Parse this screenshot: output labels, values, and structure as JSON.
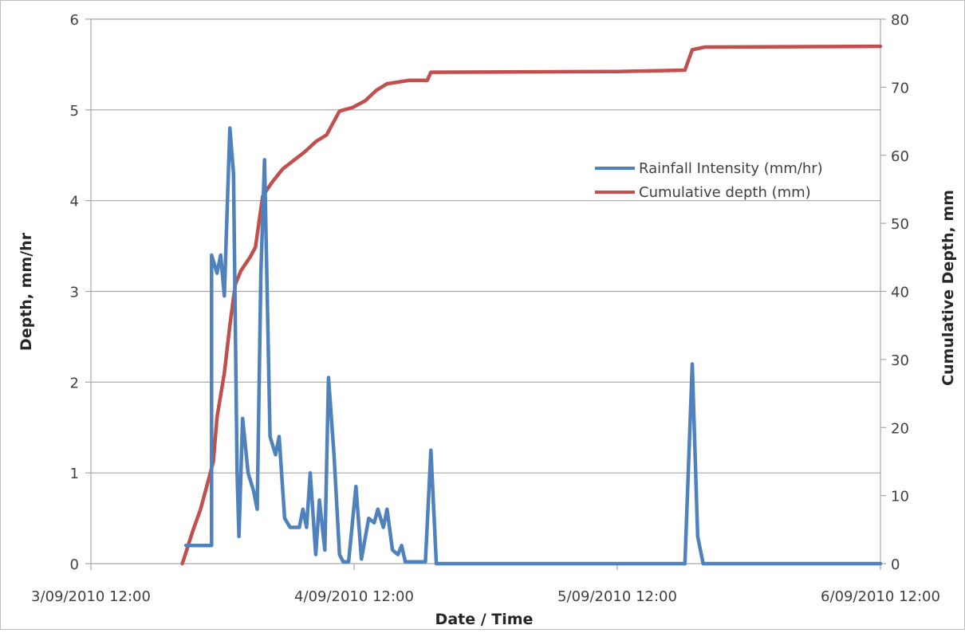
{
  "chart_data": {
    "type": "line",
    "title": "",
    "xlabel": "Date / Time",
    "ylabel": "Depth, mm/hr",
    "y2label": "Cumulative Depth, mm",
    "ylim": [
      0,
      6
    ],
    "y2lim": [
      0,
      80
    ],
    "xlim": [
      "3/09/2010 12:00",
      "6/09/2010 12:00"
    ],
    "x_ticks": [
      "3/09/2010 12:00",
      "4/09/2010 12:00",
      "5/09/2010 12:00",
      "6/09/2010 12:00"
    ],
    "y_ticks": [
      0,
      1,
      2,
      3,
      4,
      5,
      6
    ],
    "y2_ticks": [
      0,
      10,
      20,
      30,
      40,
      50,
      60,
      70,
      80
    ],
    "grid": "horizontal",
    "legend_position": "center-right",
    "series": [
      {
        "name": "Rainfall Intensity (mm/hr)",
        "axis": "left",
        "color": "#4f81bd",
        "points": [
          [
            "3/09/2010 20:40",
            0.2
          ],
          [
            "3/09/2010 21:20",
            0.2
          ],
          [
            "3/09/2010 22:00",
            0.2
          ],
          [
            "3/09/2010 22:40",
            0.2
          ],
          [
            "3/09/2010 23:00",
            0.2
          ],
          [
            "3/09/2010 23:00",
            3.4
          ],
          [
            "3/09/2010 23:30",
            3.2
          ],
          [
            "3/09/2010 23:50",
            3.4
          ],
          [
            "4/09/2010 00:10",
            2.95
          ],
          [
            "4/09/2010 00:40",
            4.8
          ],
          [
            "4/09/2010 01:00",
            4.3
          ],
          [
            "4/09/2010 01:20",
            1.0
          ],
          [
            "4/09/2010 01:30",
            0.3
          ],
          [
            "4/09/2010 01:50",
            1.6
          ],
          [
            "4/09/2010 02:20",
            1.0
          ],
          [
            "4/09/2010 02:50",
            0.8
          ],
          [
            "4/09/2010 03:10",
            0.6
          ],
          [
            "4/09/2010 03:30",
            3.2
          ],
          [
            "4/09/2010 03:50",
            4.45
          ],
          [
            "4/09/2010 04:20",
            1.4
          ],
          [
            "4/09/2010 04:50",
            1.2
          ],
          [
            "4/09/2010 05:10",
            1.4
          ],
          [
            "4/09/2010 05:40",
            0.5
          ],
          [
            "4/09/2010 06:10",
            0.4
          ],
          [
            "4/09/2010 07:00",
            0.4
          ],
          [
            "4/09/2010 07:20",
            0.6
          ],
          [
            "4/09/2010 07:40",
            0.4
          ],
          [
            "4/09/2010 08:00",
            1.0
          ],
          [
            "4/09/2010 08:30",
            0.1
          ],
          [
            "4/09/2010 08:50",
            0.7
          ],
          [
            "4/09/2010 09:20",
            0.15
          ],
          [
            "4/09/2010 09:40",
            2.05
          ],
          [
            "4/09/2010 10:10",
            1.2
          ],
          [
            "4/09/2010 10:40",
            0.1
          ],
          [
            "4/09/2010 11:00",
            0.02
          ],
          [
            "4/09/2010 11:30",
            0.02
          ],
          [
            "4/09/2010 12:10",
            0.85
          ],
          [
            "4/09/2010 12:40",
            0.05
          ],
          [
            "4/09/2010 13:20",
            0.5
          ],
          [
            "4/09/2010 13:50",
            0.45
          ],
          [
            "4/09/2010 14:10",
            0.6
          ],
          [
            "4/09/2010 14:40",
            0.4
          ],
          [
            "4/09/2010 15:00",
            0.6
          ],
          [
            "4/09/2010 15:30",
            0.15
          ],
          [
            "4/09/2010 16:00",
            0.1
          ],
          [
            "4/09/2010 16:20",
            0.2
          ],
          [
            "4/09/2010 16:40",
            0.02
          ],
          [
            "4/09/2010 18:30",
            0.02
          ],
          [
            "4/09/2010 19:00",
            1.25
          ],
          [
            "4/09/2010 19:30",
            0.0
          ],
          [
            "5/09/2010 18:10",
            0.0
          ],
          [
            "5/09/2010 18:50",
            2.2
          ],
          [
            "5/09/2010 19:20",
            0.3
          ],
          [
            "5/09/2010 19:50",
            0.0
          ],
          [
            "6/09/2010 12:00",
            0.0
          ]
        ]
      },
      {
        "name": "Cumulative depth (mm)",
        "axis": "right",
        "color": "#c0504d",
        "points": [
          [
            "3/09/2010 20:20",
            0
          ],
          [
            "3/09/2010 21:20",
            5
          ],
          [
            "3/09/2010 22:00",
            8
          ],
          [
            "3/09/2010 22:40",
            12
          ],
          [
            "3/09/2010 23:10",
            15
          ],
          [
            "3/09/2010 23:30",
            21.5
          ],
          [
            "4/09/2010 00:10",
            28
          ],
          [
            "4/09/2010 00:40",
            35
          ],
          [
            "4/09/2010 01:10",
            41
          ],
          [
            "4/09/2010 01:40",
            43
          ],
          [
            "4/09/2010 02:30",
            45
          ],
          [
            "4/09/2010 03:00",
            46.5
          ],
          [
            "4/09/2010 03:40",
            54
          ],
          [
            "4/09/2010 04:30",
            56
          ],
          [
            "4/09/2010 05:30",
            58
          ],
          [
            "4/09/2010 07:30",
            60.5
          ],
          [
            "4/09/2010 08:30",
            62
          ],
          [
            "4/09/2010 09:30",
            63
          ],
          [
            "4/09/2010 10:40",
            66.5
          ],
          [
            "4/09/2010 11:50",
            67
          ],
          [
            "4/09/2010 13:00",
            68
          ],
          [
            "4/09/2010 14:00",
            69.5
          ],
          [
            "4/09/2010 15:00",
            70.5
          ],
          [
            "4/09/2010 17:00",
            71
          ],
          [
            "4/09/2010 18:40",
            71
          ],
          [
            "4/09/2010 19:00",
            72.2
          ],
          [
            "5/09/2010 12:00",
            72.3
          ],
          [
            "5/09/2010 18:10",
            72.5
          ],
          [
            "5/09/2010 18:50",
            75.5
          ],
          [
            "5/09/2010 20:00",
            75.9
          ],
          [
            "6/09/2010 12:00",
            76
          ]
        ]
      }
    ]
  }
}
